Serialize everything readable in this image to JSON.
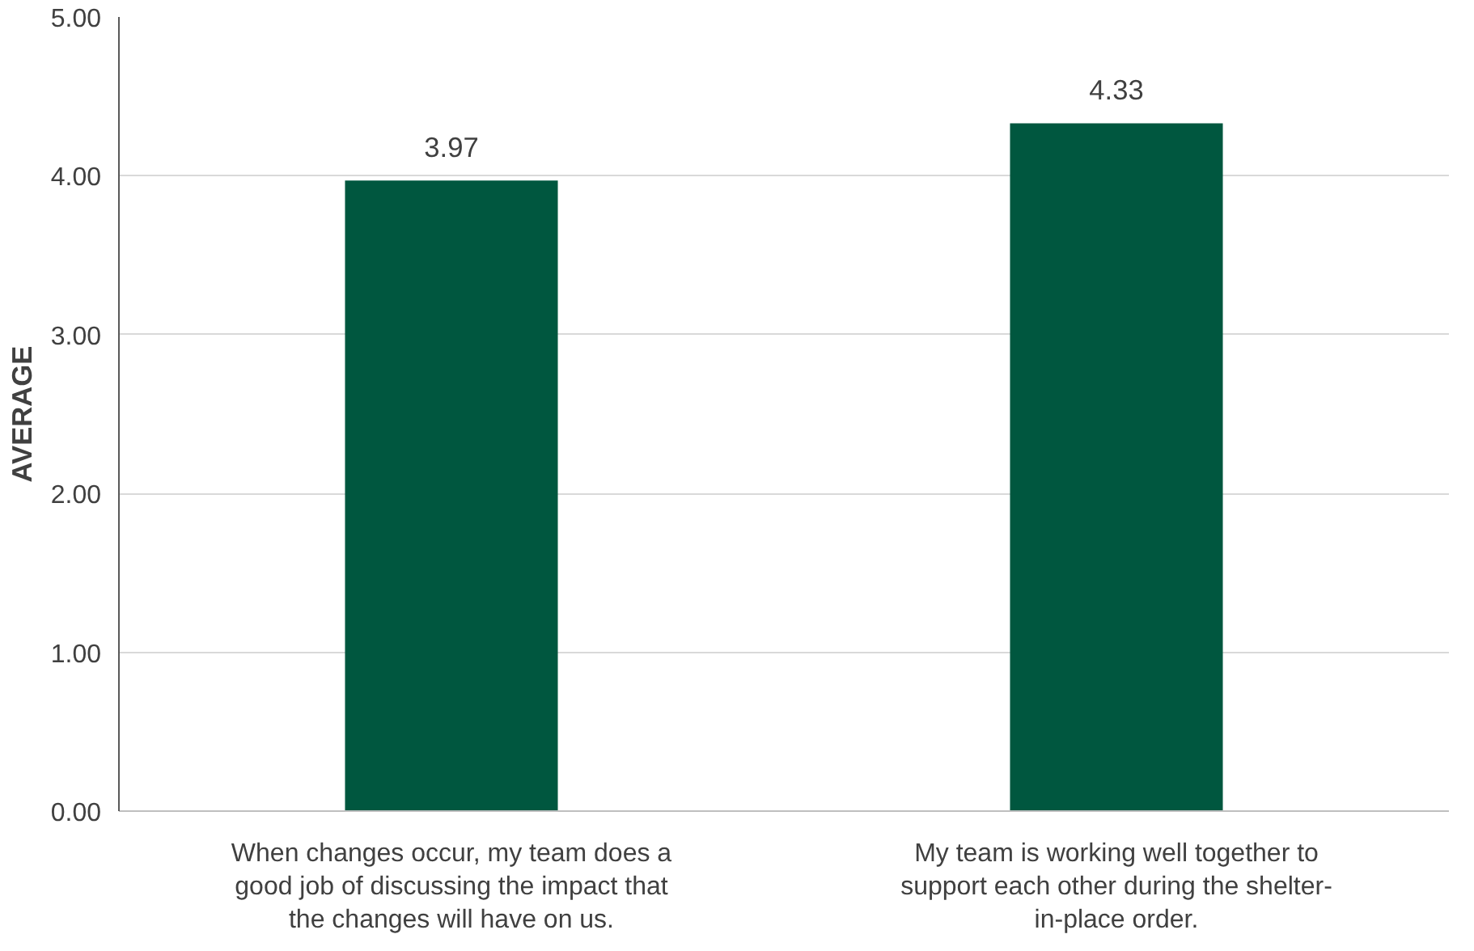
{
  "chart_data": {
    "type": "bar",
    "ylabel": "AVERAGE",
    "categories": [
      "When changes occur, my team does a good job of discussing the impact that the changes will have on us.",
      "My team is working well together to support each other during the shelter-in-place order."
    ],
    "values": [
      3.97,
      4.33
    ],
    "color": "#00573f",
    "ylim": [
      0,
      5
    ],
    "yticks": [
      {
        "value": 0,
        "label": "0.00"
      },
      {
        "value": 1,
        "label": "1.00"
      },
      {
        "value": 2,
        "label": "2.00"
      },
      {
        "value": 3,
        "label": "3.00"
      },
      {
        "value": 4,
        "label": "4.00"
      },
      {
        "value": 5,
        "label": "5.00"
      }
    ],
    "grid": "y",
    "data_labels": true
  }
}
